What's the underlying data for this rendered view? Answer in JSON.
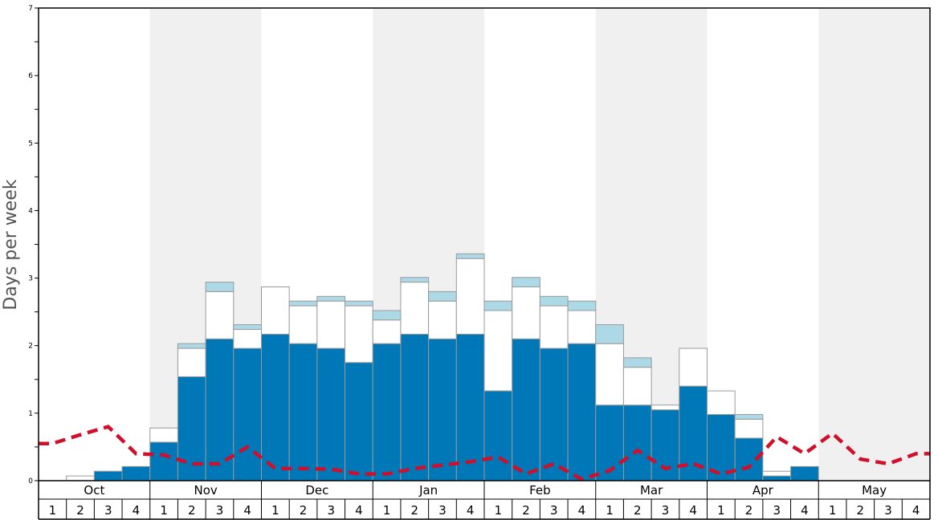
{
  "chart_data": {
    "type": "bar",
    "ylabel": "Days per week",
    "ylim": [
      0,
      7
    ],
    "yticks": [
      "0",
      "1",
      "2",
      "3",
      "4",
      "5",
      "6",
      "7"
    ],
    "months": [
      "Oct",
      "Nov",
      "Dec",
      "Jan",
      "Feb",
      "Mar",
      "Apr",
      "May"
    ],
    "week_labels": [
      "1",
      "2",
      "3",
      "4"
    ],
    "colors": {
      "dark": "#0077b6",
      "mid": "#ffffff",
      "light": "#add8e6",
      "line": "#d0102a",
      "band": "#f0f0f0"
    },
    "series": [
      {
        "values": [
          0,
          0,
          0.14,
          0.21,
          0.57,
          1.54,
          2.1,
          1.96,
          2.17,
          2.03,
          1.96,
          1.75,
          2.03,
          2.17,
          2.1,
          2.17,
          1.33,
          2.1,
          1.96,
          2.03,
          1.12,
          1.12,
          1.05,
          1.4,
          0.98,
          0.63,
          0.07,
          0.21,
          0,
          0,
          0,
          0
        ]
      },
      {
        "values": [
          0,
          0.07,
          0,
          0,
          0.21,
          0.42,
          0.7,
          0.28,
          0.7,
          0.56,
          0.7,
          0.84,
          0.35,
          0.77,
          0.56,
          1.12,
          1.19,
          0.77,
          0.63,
          0.49,
          0.91,
          0.56,
          0.07,
          0.56,
          0.35,
          0.28,
          0.07,
          0,
          0,
          0,
          0,
          0
        ]
      },
      {
        "values": [
          0,
          0,
          0,
          0,
          0,
          0.07,
          0.14,
          0.07,
          0,
          0.07,
          0.07,
          0.07,
          0.14,
          0.07,
          0.14,
          0.07,
          0.14,
          0.14,
          0.14,
          0.14,
          0.28,
          0.14,
          0,
          0,
          0,
          0.07,
          0,
          0,
          0,
          0,
          0,
          0
        ]
      },
      {
        "type": "line",
        "values": [
          0.55,
          0.68,
          0.8,
          0.4,
          0.38,
          0.25,
          0.25,
          0.5,
          0.18,
          0.18,
          0.17,
          0.1,
          0.1,
          0.18,
          0.23,
          0.28,
          0.35,
          0.1,
          0.25,
          0.02,
          0.15,
          0.45,
          0.18,
          0.25,
          0.1,
          0.2,
          0.65,
          0.4,
          0.7,
          0.32,
          0.25,
          0.4
        ]
      }
    ]
  }
}
